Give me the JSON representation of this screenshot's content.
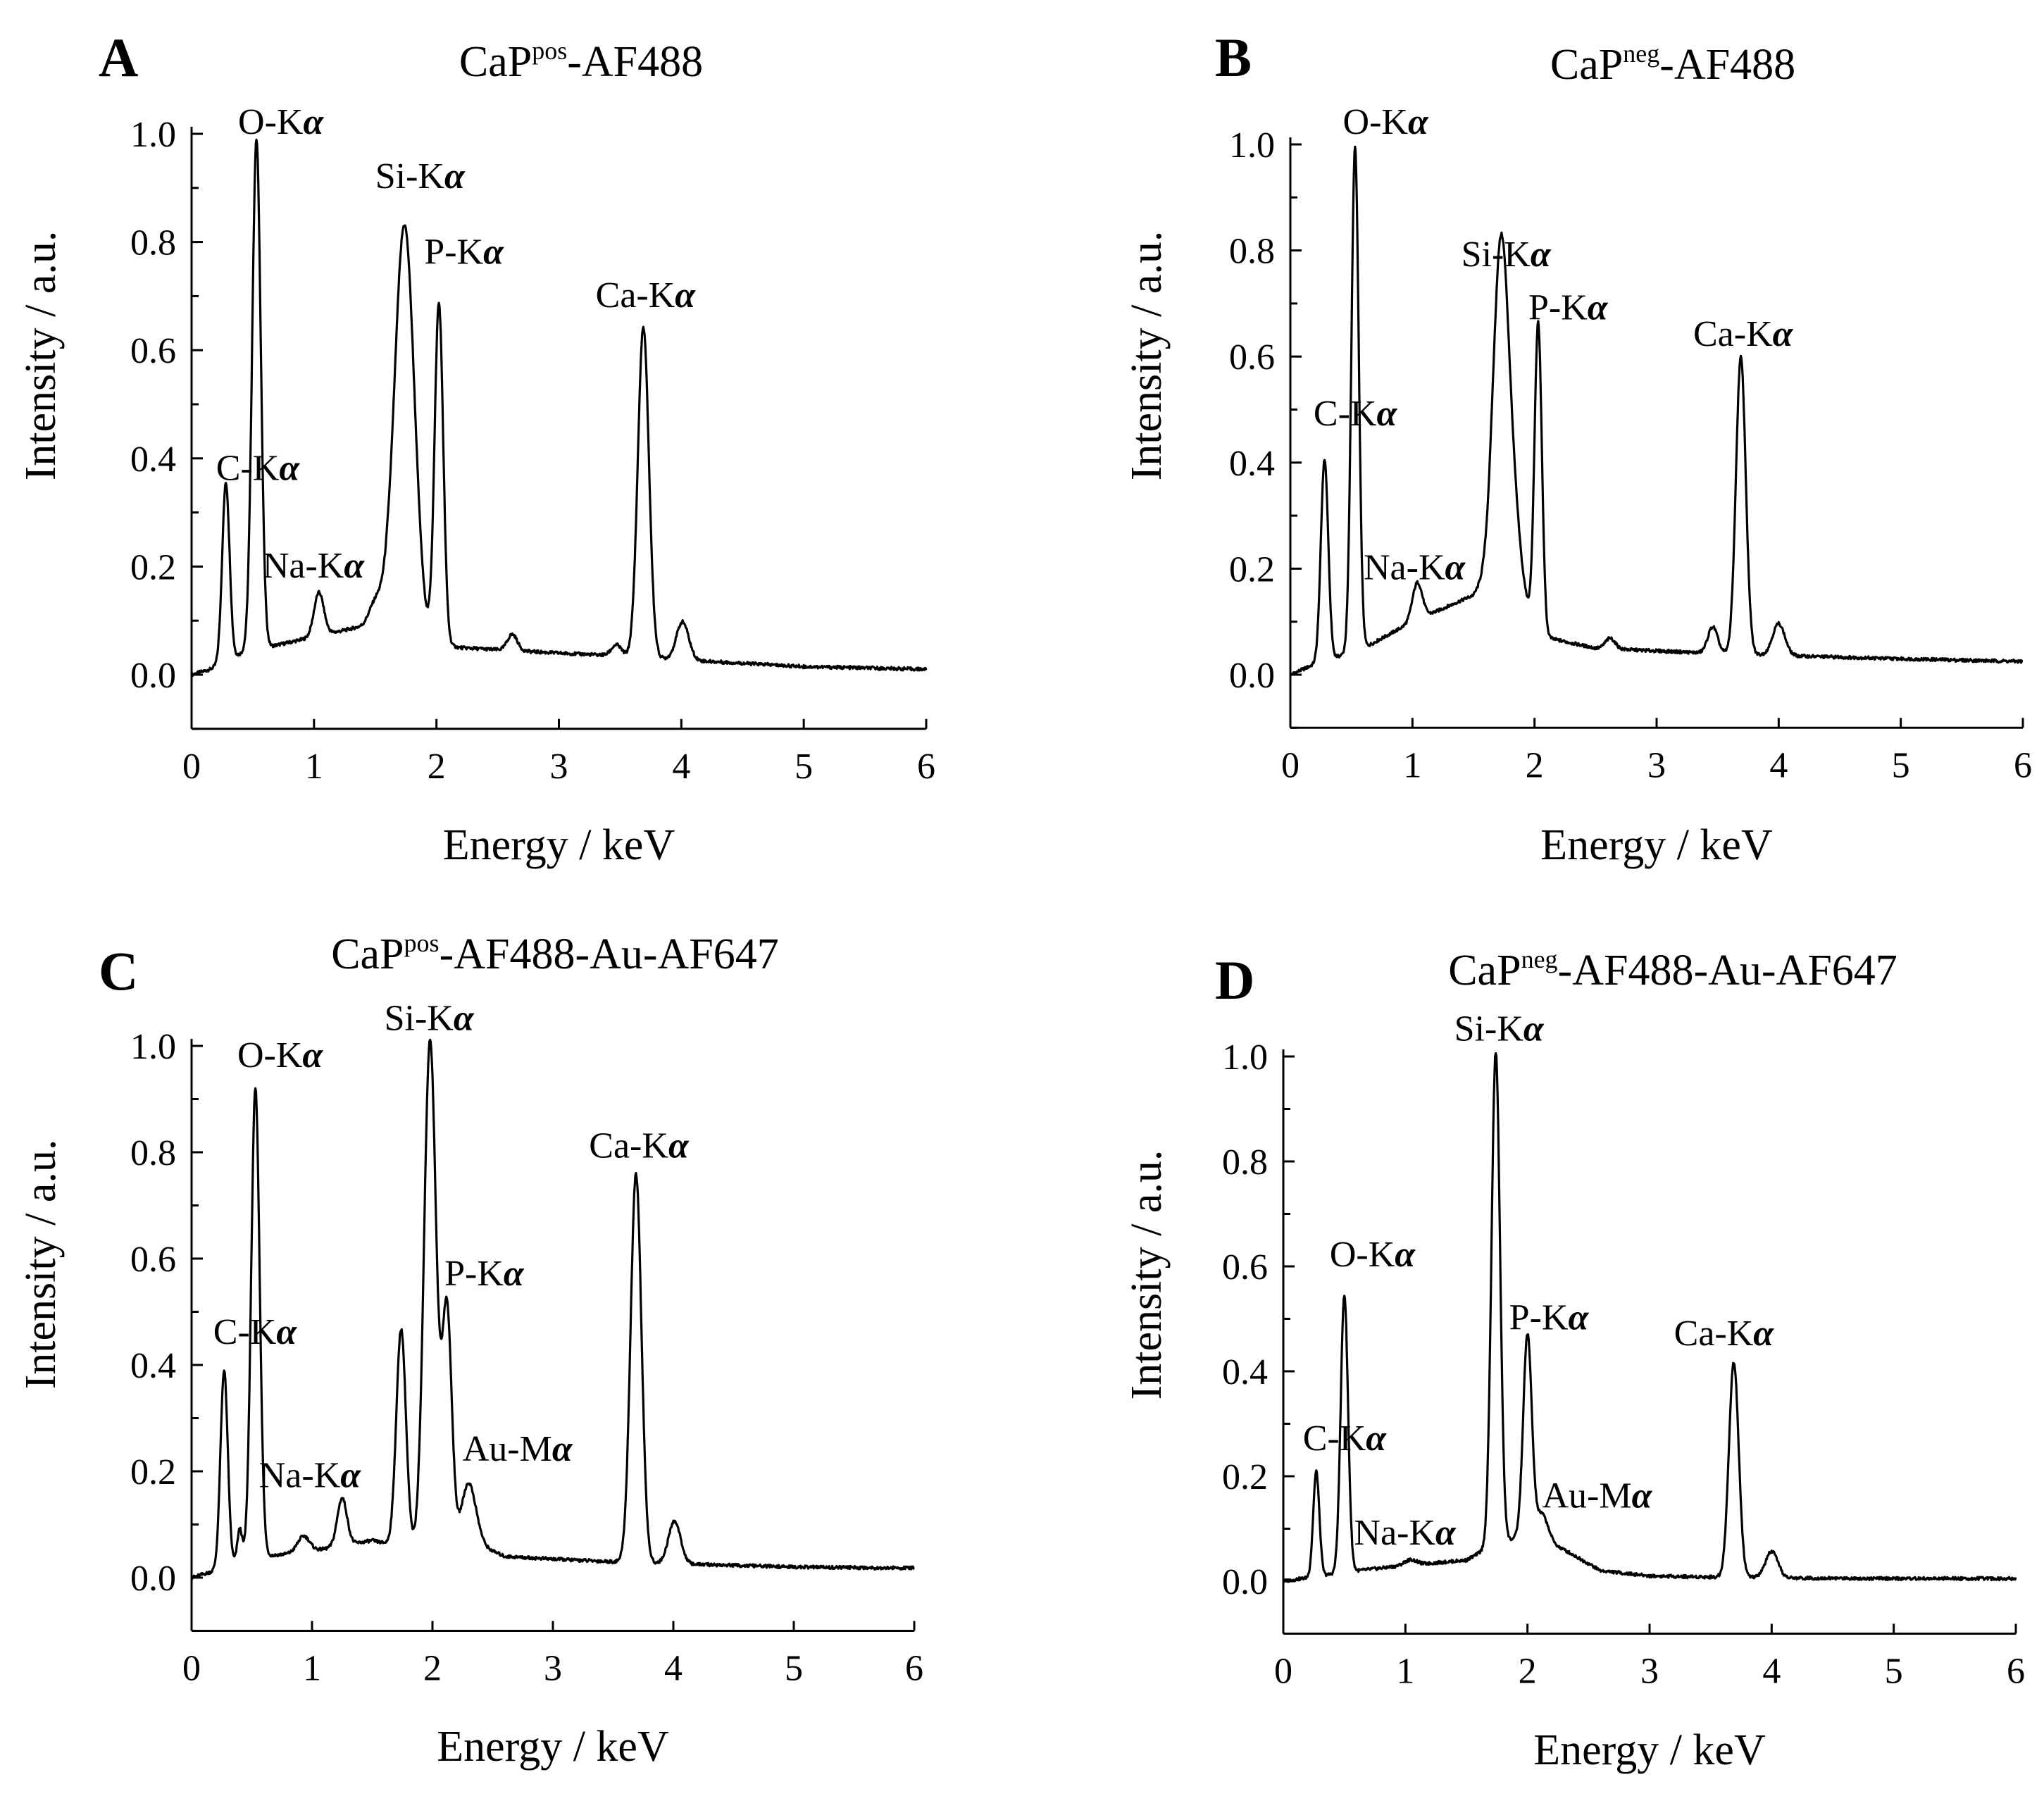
{
  "chart_data": [
    {
      "panel": "A",
      "type": "line",
      "title": {
        "main": "CaP",
        "sup": "pos",
        "rest": "-AF488"
      },
      "xlabel": "Energy  / keV",
      "ylabel": "Intensity / a.u.",
      "xlim": [
        0,
        6
      ],
      "ylim": [
        -0.1,
        1.0
      ],
      "xticks": [
        "0",
        "1",
        "2",
        "3",
        "4",
        "5",
        "6"
      ],
      "yticks": [
        "0.0",
        "0.2",
        "0.4",
        "0.6",
        "0.8",
        "1.0"
      ],
      "baseline": [
        [
          0,
          0.0
        ],
        [
          0.15,
          0.01
        ],
        [
          0.5,
          0.05
        ],
        [
          0.6,
          0.05
        ],
        [
          1.0,
          0.07
        ],
        [
          1.4,
          0.09
        ],
        [
          1.6,
          0.12
        ],
        [
          1.9,
          0.06
        ],
        [
          2.2,
          0.05
        ],
        [
          3.0,
          0.04
        ],
        [
          3.5,
          0.035
        ],
        [
          4.2,
          0.025
        ],
        [
          5.0,
          0.015
        ],
        [
          6.0,
          0.01
        ]
      ],
      "peaks": [
        [
          0.28,
          0.33,
          0.03
        ],
        [
          0.53,
          0.94,
          0.035
        ],
        [
          1.04,
          0.08,
          0.04
        ],
        [
          1.5,
          0.03,
          0.05
        ],
        [
          1.74,
          0.74,
          0.08
        ],
        [
          2.02,
          0.63,
          0.035
        ],
        [
          2.62,
          0.03,
          0.04
        ],
        [
          3.47,
          0.02,
          0.04
        ],
        [
          3.69,
          0.61,
          0.045
        ],
        [
          4.01,
          0.07,
          0.05
        ]
      ],
      "annotations": [
        {
          "base": "C-K",
          "x": 0.2,
          "y": 0.36
        },
        {
          "base": "O-K",
          "x": 0.38,
          "y": 1.0
        },
        {
          "base": "Na-K",
          "x": 0.58,
          "y": 0.18
        },
        {
          "base": "Si-K",
          "x": 1.5,
          "y": 0.9
        },
        {
          "base": "P-K",
          "x": 1.9,
          "y": 0.76
        },
        {
          "base": "Ca-K",
          "x": 3.3,
          "y": 0.68
        }
      ]
    },
    {
      "panel": "B",
      "type": "line",
      "title": {
        "main": "CaP",
        "sup": "neg",
        "rest": "-AF488"
      },
      "xlabel": "Energy  / keV",
      "ylabel": "Intensity / a.u.",
      "xlim": [
        0,
        6
      ],
      "ylim": [
        -0.1,
        1.0
      ],
      "xticks": [
        "0",
        "1",
        "2",
        "3",
        "4",
        "5",
        "6"
      ],
      "yticks": [
        "0.0",
        "0.2",
        "0.4",
        "0.6",
        "0.8",
        "1.0"
      ],
      "baseline": [
        [
          0,
          0.0
        ],
        [
          0.2,
          0.02
        ],
        [
          0.6,
          0.05
        ],
        [
          1.0,
          0.1
        ],
        [
          1.5,
          0.15
        ],
        [
          1.65,
          0.2
        ],
        [
          1.9,
          0.1
        ],
        [
          2.1,
          0.07
        ],
        [
          2.5,
          0.05
        ],
        [
          3.0,
          0.045
        ],
        [
          3.5,
          0.04
        ],
        [
          4.2,
          0.035
        ],
        [
          5.0,
          0.03
        ],
        [
          6.0,
          0.025
        ]
      ],
      "peaks": [
        [
          0.28,
          0.38,
          0.03
        ],
        [
          0.53,
          0.95,
          0.03
        ],
        [
          1.04,
          0.07,
          0.04
        ],
        [
          1.72,
          0.52,
          0.06
        ],
        [
          1.8,
          0.22,
          0.08
        ],
        [
          2.03,
          0.58,
          0.03
        ],
        [
          2.62,
          0.02,
          0.04
        ],
        [
          3.46,
          0.05,
          0.04
        ],
        [
          3.69,
          0.56,
          0.04
        ],
        [
          4.0,
          0.06,
          0.05
        ]
      ],
      "annotations": [
        {
          "base": "C-K",
          "x": 0.19,
          "y": 0.47
        },
        {
          "base": "O-K",
          "x": 0.43,
          "y": 1.02
        },
        {
          "base": "Na-K",
          "x": 0.6,
          "y": 0.18
        },
        {
          "base": "Si-K",
          "x": 1.4,
          "y": 0.77
        },
        {
          "base": "P-K",
          "x": 1.95,
          "y": 0.67
        },
        {
          "base": "Ca-K",
          "x": 3.3,
          "y": 0.62
        }
      ]
    },
    {
      "panel": "C",
      "type": "line",
      "title": {
        "main": "CaP",
        "sup": "pos",
        "rest": "-AF488-Au-AF647"
      },
      "xlabel": "Energy  / keV",
      "ylabel": "Intensity / a.u.",
      "xlim": [
        0,
        6
      ],
      "ylim": [
        -0.1,
        1.0
      ],
      "xticks": [
        "0",
        "1",
        "2",
        "3",
        "4",
        "5",
        "6"
      ],
      "yticks": [
        "0.0",
        "0.2",
        "0.4",
        "0.6",
        "0.8",
        "1.0"
      ],
      "baseline": [
        [
          0,
          0.0
        ],
        [
          0.15,
          0.01
        ],
        [
          0.5,
          0.04
        ],
        [
          0.6,
          0.04
        ],
        [
          1.0,
          0.05
        ],
        [
          1.5,
          0.07
        ],
        [
          1.9,
          0.05
        ],
        [
          2.4,
          0.06
        ],
        [
          2.6,
          0.04
        ],
        [
          3.0,
          0.035
        ],
        [
          3.5,
          0.03
        ],
        [
          4.2,
          0.025
        ],
        [
          5.0,
          0.02
        ],
        [
          6.0,
          0.018
        ]
      ],
      "peaks": [
        [
          0.27,
          0.37,
          0.03
        ],
        [
          0.4,
          0.06,
          0.02
        ],
        [
          0.53,
          0.88,
          0.035
        ],
        [
          0.93,
          0.03,
          0.05
        ],
        [
          1.25,
          0.09,
          0.04
        ],
        [
          1.74,
          0.41,
          0.04
        ],
        [
          1.98,
          0.96,
          0.05
        ],
        [
          2.12,
          0.45,
          0.04
        ],
        [
          2.3,
          0.12,
          0.06
        ],
        [
          3.69,
          0.73,
          0.045
        ],
        [
          4.01,
          0.08,
          0.05
        ]
      ],
      "annotations": [
        {
          "base": "C-K",
          "x": 0.18,
          "y": 0.44
        },
        {
          "base": "O-K",
          "x": 0.38,
          "y": 0.96
        },
        {
          "base": "Si-K",
          "x": 1.6,
          "y": 1.03
        },
        {
          "base": "P-K",
          "x": 2.1,
          "y": 0.55
        },
        {
          "base": "Na-K",
          "x": 0.56,
          "y": 0.17
        },
        {
          "base": "Au-M",
          "x": 2.25,
          "y": 0.22
        },
        {
          "base": "Ca-K",
          "x": 3.3,
          "y": 0.79
        }
      ]
    },
    {
      "panel": "D",
      "type": "line",
      "title": {
        "main": "CaP",
        "sup": "neg",
        "rest": "-AF488-Au-AF647"
      },
      "xlabel": "Energy  / keV",
      "ylabel": "Intensity / a.u.",
      "xlim": [
        0,
        6
      ],
      "ylim": [
        -0.1,
        1.0
      ],
      "xticks": [
        "0",
        "1",
        "2",
        "3",
        "4",
        "5",
        "6"
      ],
      "yticks": [
        "0.0",
        "0.2",
        "0.4",
        "0.6",
        "0.8",
        "1.0"
      ],
      "baseline": [
        [
          0,
          0.0
        ],
        [
          0.15,
          0.005
        ],
        [
          0.6,
          0.02
        ],
        [
          1.0,
          0.03
        ],
        [
          1.5,
          0.04
        ],
        [
          1.65,
          0.06
        ],
        [
          2.0,
          0.09
        ],
        [
          2.3,
          0.06
        ],
        [
          2.6,
          0.02
        ],
        [
          3.0,
          0.01
        ],
        [
          3.5,
          0.008
        ],
        [
          4.2,
          0.006
        ],
        [
          5.0,
          0.005
        ],
        [
          6.0,
          0.005
        ]
      ],
      "peaks": [
        [
          0.27,
          0.2,
          0.025
        ],
        [
          0.5,
          0.53,
          0.03
        ],
        [
          1.04,
          0.01,
          0.05
        ],
        [
          1.74,
          0.94,
          0.035
        ],
        [
          2.0,
          0.38,
          0.035
        ],
        [
          2.12,
          0.05,
          0.05
        ],
        [
          3.69,
          0.41,
          0.04
        ],
        [
          4.0,
          0.05,
          0.05
        ]
      ],
      "annotations": [
        {
          "base": "C-K",
          "x": 0.16,
          "y": 0.25
        },
        {
          "base": "O-K",
          "x": 0.38,
          "y": 0.6
        },
        {
          "base": "Na-K",
          "x": 0.58,
          "y": 0.07
        },
        {
          "base": "Si-K",
          "x": 1.4,
          "y": 1.03
        },
        {
          "base": "P-K",
          "x": 1.85,
          "y": 0.48
        },
        {
          "base": "Au-M",
          "x": 2.12,
          "y": 0.14
        },
        {
          "base": "Ca-K",
          "x": 3.2,
          "y": 0.45
        }
      ]
    }
  ]
}
